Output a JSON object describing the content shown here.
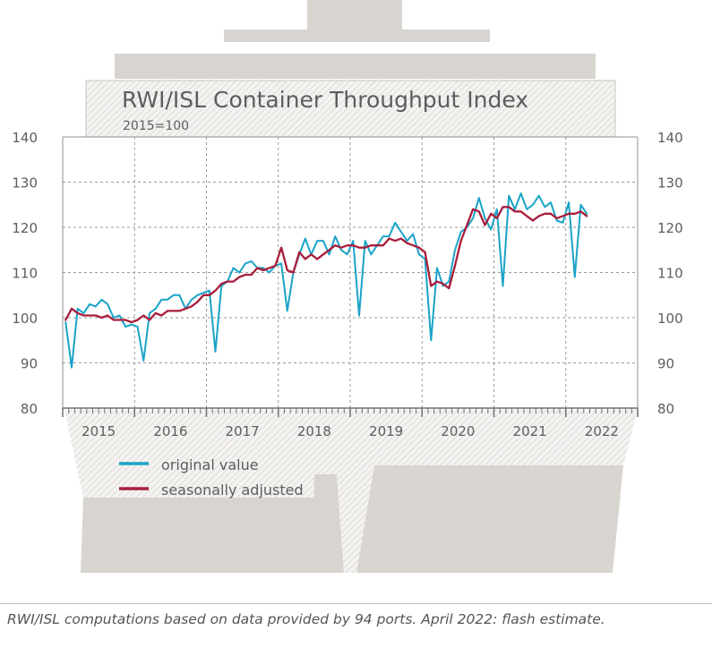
{
  "chart_data": {
    "type": "line",
    "title": "RWI/ISL Container Throughput Index",
    "subtitle": "2015=100",
    "ylim": [
      80,
      140
    ],
    "yticks": [
      80,
      90,
      100,
      110,
      120,
      130,
      140
    ],
    "ytick_labels": [
      "80",
      "90",
      "100",
      "110",
      "120",
      "130",
      "140"
    ],
    "year_labels": [
      "2015",
      "2016",
      "2017",
      "2018",
      "2019",
      "2020",
      "2021",
      "2022"
    ],
    "x_start": "2015-01",
    "grid": true,
    "legend_position": "bottom-left",
    "series": [
      {
        "name": "original value",
        "color": "#1aa3c8",
        "values": [
          99,
          89,
          102,
          101,
          103,
          102.5,
          104,
          103,
          100,
          100.5,
          98,
          98.5,
          98,
          90.5,
          101,
          102,
          104,
          104,
          105,
          105,
          102,
          104,
          105,
          105.5,
          106,
          92.5,
          107,
          108,
          111,
          110,
          112,
          112.5,
          111,
          111,
          110,
          111.5,
          112,
          101.5,
          110,
          114,
          117.5,
          114,
          117,
          117,
          114,
          118,
          115,
          114,
          117,
          100.5,
          117,
          114,
          116,
          118,
          118,
          121,
          119,
          117,
          118.5,
          114,
          113,
          95,
          111,
          107,
          108,
          115,
          119,
          120,
          122,
          126.5,
          122,
          119.5,
          124,
          107,
          127,
          124,
          127.5,
          124,
          125,
          127,
          124.5,
          125.5,
          121.5,
          121,
          125.5,
          109,
          125,
          123
        ]
      },
      {
        "name": "seasonally adjusted",
        "color": "#a91d3c",
        "values": [
          99.5,
          102,
          101,
          100.5,
          100.5,
          100.5,
          100,
          100.5,
          99.5,
          99.5,
          99.5,
          99,
          99.5,
          100.5,
          99.5,
          101,
          100.5,
          101.5,
          101.5,
          101.5,
          102,
          102.5,
          103.5,
          105,
          105,
          106,
          107.5,
          108,
          108,
          109,
          109.5,
          109.5,
          111,
          110.5,
          111,
          111.5,
          115.5,
          110.5,
          110,
          114.5,
          113,
          114,
          113,
          114,
          115,
          116,
          115.5,
          116,
          116,
          115.5,
          115.5,
          116,
          116,
          116,
          117.5,
          117,
          117.5,
          116.5,
          116,
          115.5,
          114.5,
          107,
          108,
          107.5,
          106.5,
          111.5,
          117,
          120.5,
          124,
          123.5,
          120.5,
          123,
          122,
          124.5,
          124.5,
          123.5,
          123.5,
          122.5,
          121.5,
          122.5,
          123,
          123,
          122,
          122.5,
          123,
          123,
          123.5,
          122.5
        ]
      }
    ]
  },
  "legend": {
    "original_label": "original value",
    "adjusted_label": "seasonally adjusted"
  },
  "footnote": "RWI/ISL computations based on data provided by 94 ports. April 2022: flash estimate."
}
